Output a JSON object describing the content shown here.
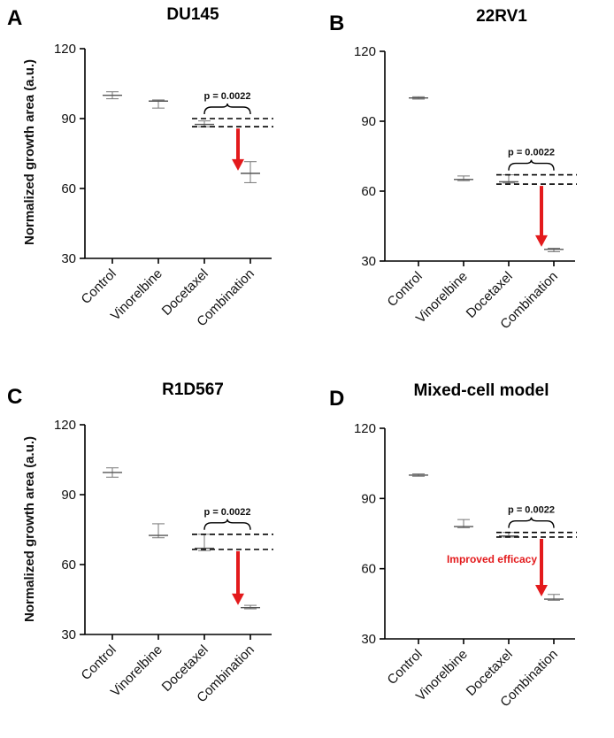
{
  "chart_data": [
    {
      "type": "box",
      "panel_letter": "A",
      "title": "DU145",
      "ylabel": "Normalized growth area (a.u.)",
      "show_ylabel": true,
      "ylim": [
        30,
        120
      ],
      "yticks": [
        30,
        60,
        90,
        120
      ],
      "categories": [
        "Control",
        "Vinorelbine",
        "Docetaxel",
        "Combination"
      ],
      "series": [
        {
          "name": "Control",
          "min": 98.5,
          "median": 100,
          "max": 101.5
        },
        {
          "name": "Vinorelbine",
          "min": 94.5,
          "median": 97.5,
          "max": 98
        },
        {
          "name": "Docetaxel",
          "min": 86.5,
          "median": 87.5,
          "max": 89
        },
        {
          "name": "Combination",
          "min": 62.5,
          "median": 66.5,
          "max": 71.5
        }
      ],
      "comparison": {
        "p_value": "p = 0.0022",
        "from": 2,
        "to": 3,
        "upper_line": 90,
        "lower_line": 86.5
      },
      "arrow": {
        "from": 86.5,
        "to": 66.5,
        "color": "#e31a1c"
      },
      "annotation": ""
    },
    {
      "type": "box",
      "panel_letter": "B",
      "title": "22RV1",
      "ylabel": "",
      "show_ylabel": false,
      "ylim": [
        30,
        120
      ],
      "yticks": [
        30,
        60,
        90,
        120
      ],
      "categories": [
        "Control",
        "Vinorelbine",
        "Docetaxel",
        "Combination"
      ],
      "series": [
        {
          "name": "Control",
          "min": 99.5,
          "median": 100,
          "max": 100.5
        },
        {
          "name": "Vinorelbine",
          "min": 64.5,
          "median": 65,
          "max": 66.5
        },
        {
          "name": "Docetaxel",
          "min": 63.5,
          "median": 64,
          "max": 67
        },
        {
          "name": "Combination",
          "min": 34,
          "median": 35,
          "max": 35.5
        }
      ],
      "comparison": {
        "p_value": "p = 0.0022",
        "from": 2,
        "to": 3,
        "upper_line": 67,
        "lower_line": 63
      },
      "arrow": {
        "from": 63,
        "to": 35,
        "color": "#e31a1c"
      },
      "annotation": ""
    },
    {
      "type": "box",
      "panel_letter": "C",
      "title": "R1D567",
      "ylabel": "Normalized growth area (a.u.)",
      "show_ylabel": true,
      "ylim": [
        30,
        120
      ],
      "yticks": [
        30,
        60,
        90,
        120
      ],
      "categories": [
        "Control",
        "Vinorelbine",
        "Docetaxel",
        "Combination"
      ],
      "series": [
        {
          "name": "Control",
          "min": 97.5,
          "median": 99.5,
          "max": 101.5
        },
        {
          "name": "Vinorelbine",
          "min": 71.5,
          "median": 72.5,
          "max": 77.5
        },
        {
          "name": "Docetaxel",
          "min": 66,
          "median": 67,
          "max": 73
        },
        {
          "name": "Combination",
          "min": 41,
          "median": 41.5,
          "max": 42.5
        }
      ],
      "comparison": {
        "p_value": "p = 0.0022",
        "from": 2,
        "to": 3,
        "upper_line": 73,
        "lower_line": 66.5
      },
      "arrow": {
        "from": 66.5,
        "to": 41.5,
        "color": "#e31a1c"
      },
      "annotation": ""
    },
    {
      "type": "box",
      "panel_letter": "D",
      "title": "Mixed-cell model",
      "ylabel": "",
      "show_ylabel": false,
      "ylim": [
        30,
        120
      ],
      "yticks": [
        30,
        60,
        90,
        120
      ],
      "categories": [
        "Control",
        "Vinorelbine",
        "Docetaxel",
        "Combination"
      ],
      "series": [
        {
          "name": "Control",
          "min": 99.5,
          "median": 100,
          "max": 100.5
        },
        {
          "name": "Vinorelbine",
          "min": 77.5,
          "median": 78,
          "max": 81
        },
        {
          "name": "Docetaxel",
          "min": 73.5,
          "median": 74,
          "max": 75.5
        },
        {
          "name": "Combination",
          "min": 46.5,
          "median": 47,
          "max": 49
        }
      ],
      "comparison": {
        "p_value": "p = 0.0022",
        "from": 2,
        "to": 3,
        "upper_line": 75.5,
        "lower_line": 73.5
      },
      "arrow": {
        "from": 73.5,
        "to": 47,
        "color": "#e31a1c"
      },
      "annotation": "Improved efficacy"
    }
  ]
}
